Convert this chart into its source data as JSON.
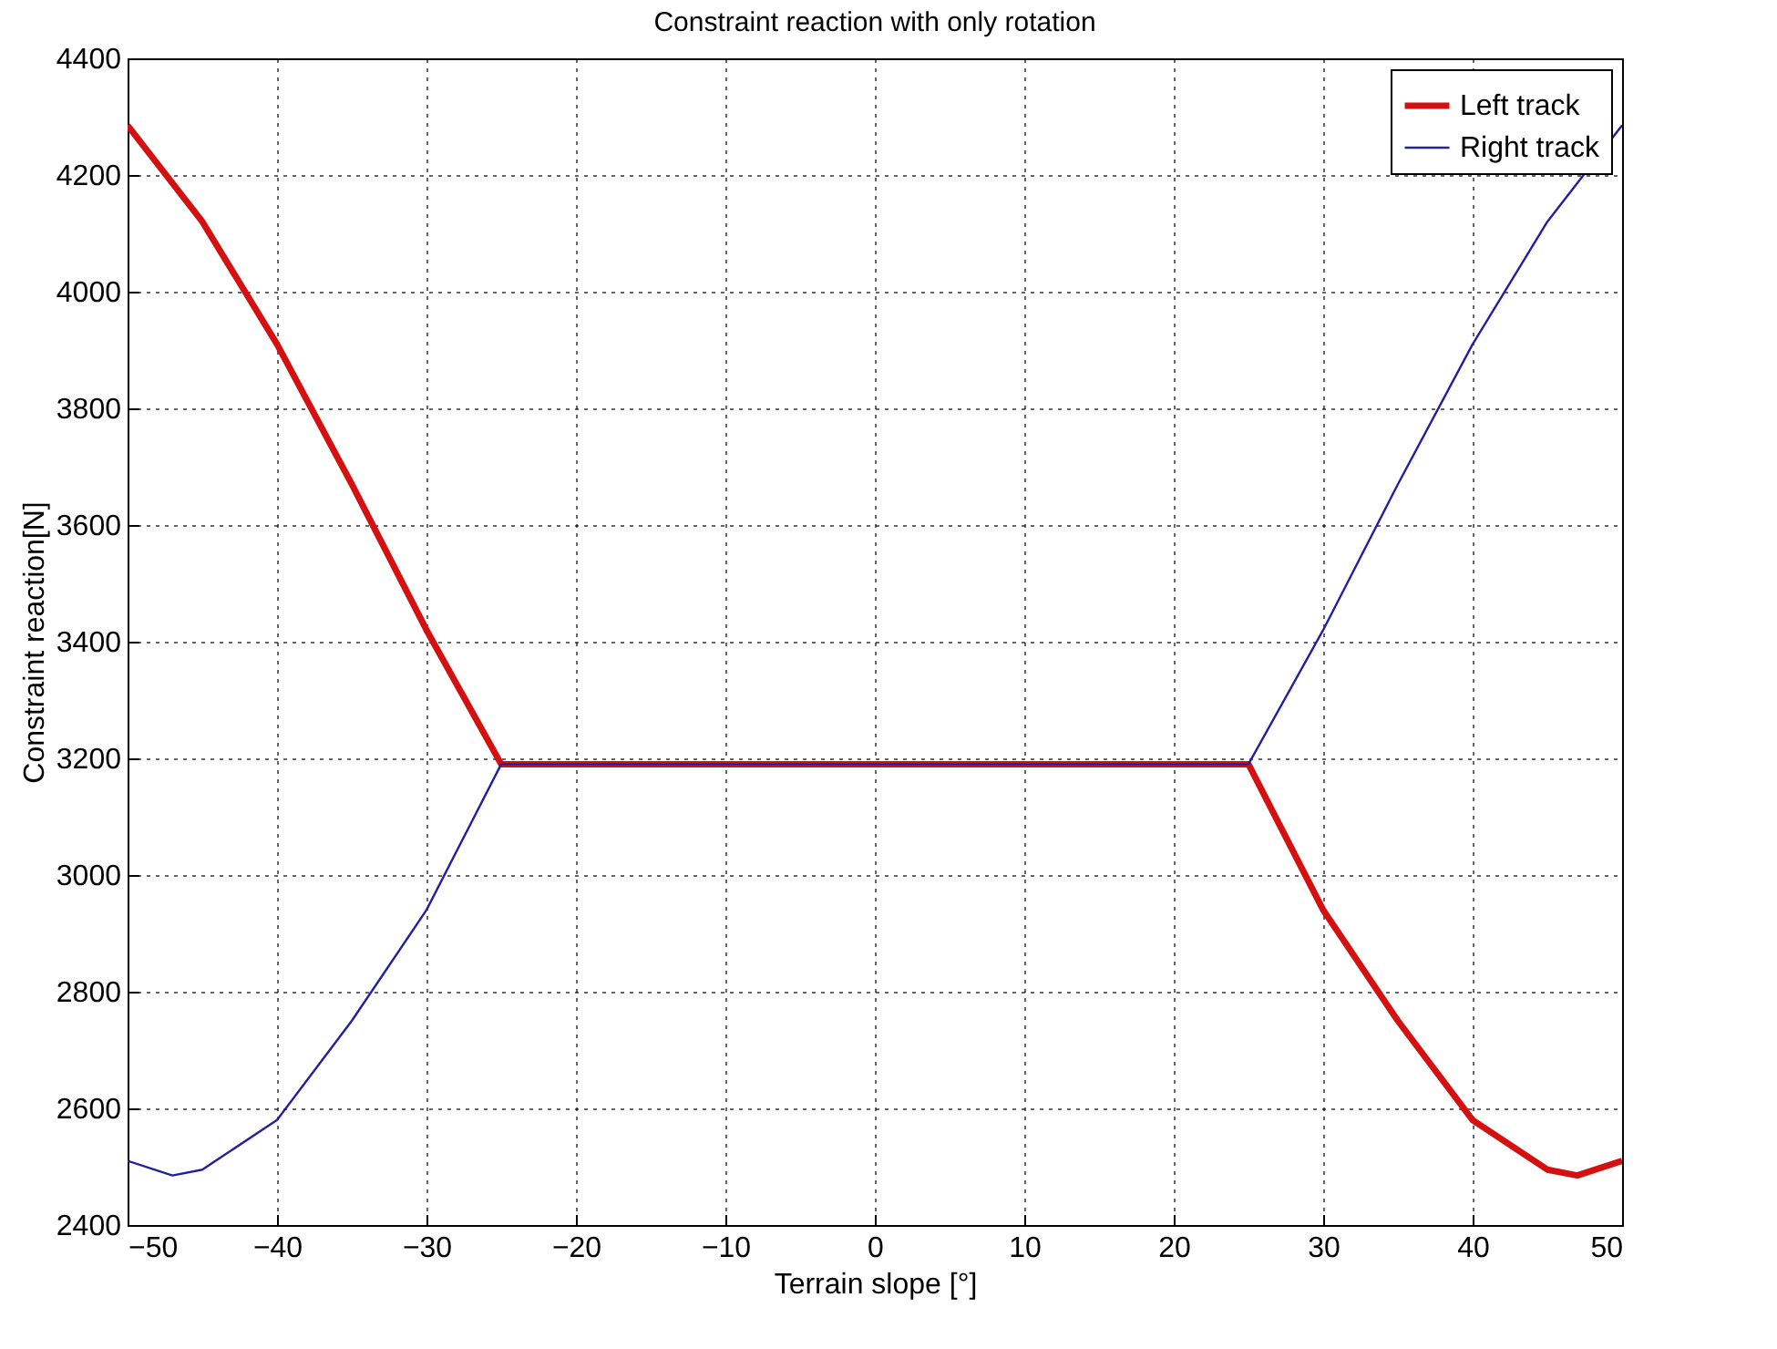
{
  "chart_data": {
    "type": "line",
    "title": "Constraint reaction with only rotation",
    "xlabel": "Terrain slope [°]",
    "ylabel": "Constraint reaction[N]",
    "xlim": [
      -50,
      50
    ],
    "xticks": [
      -50,
      -40,
      -30,
      -20,
      -10,
      0,
      10,
      20,
      30,
      40,
      50
    ],
    "ylim": [
      2400,
      4400
    ],
    "yticks": [
      2400,
      2600,
      2800,
      3000,
      3200,
      3400,
      3600,
      3800,
      4000,
      4200,
      4400
    ],
    "grid": true,
    "legend": "top right",
    "line_style": "solid",
    "marker": "none",
    "series": [
      {
        "name": "Left track",
        "color": "#d41010",
        "x": [
          -50,
          -45,
          -40,
          -35,
          -30,
          -25,
          25,
          30,
          35,
          40,
          45,
          47,
          50
        ],
        "values": [
          4285,
          4120,
          3910,
          3670,
          3420,
          3190,
          3190,
          2940,
          2750,
          2580,
          2495,
          2485,
          2510
        ]
      },
      {
        "name": "Right track",
        "color": "#2020a0",
        "x": [
          -50,
          -47,
          -45,
          -40,
          -35,
          -30,
          -25,
          25,
          30,
          35,
          40,
          45,
          50
        ],
        "values": [
          2510,
          2485,
          2495,
          2580,
          2750,
          2940,
          3190,
          3190,
          3420,
          3670,
          3910,
          4120,
          4285
        ]
      }
    ]
  }
}
